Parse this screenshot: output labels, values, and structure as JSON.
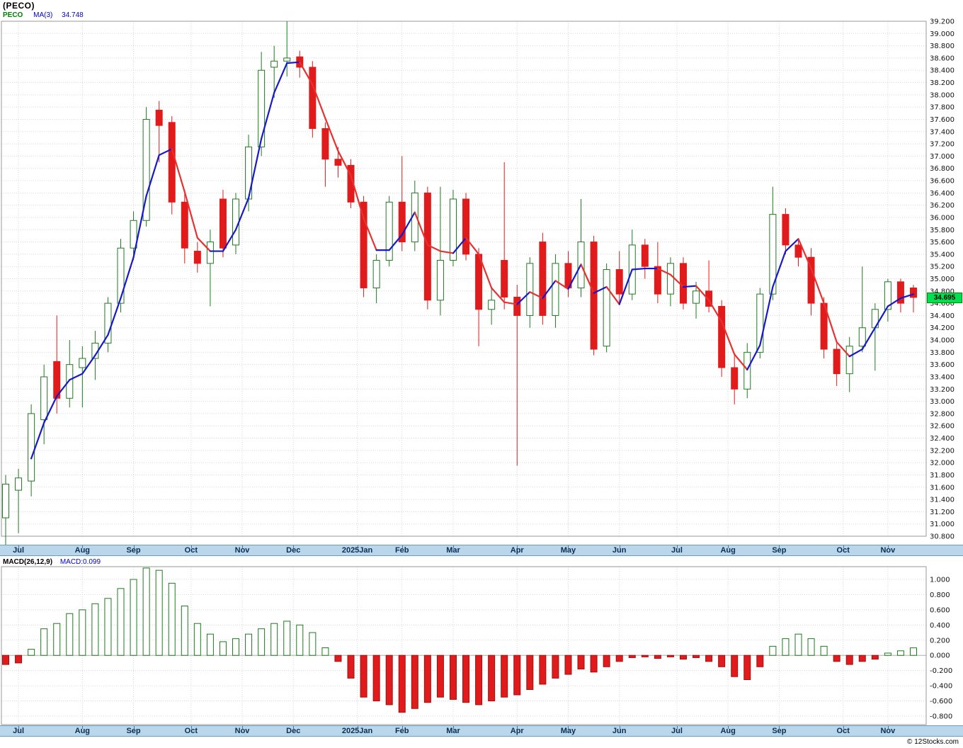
{
  "attribution": "© 12Stocks.com",
  "colors": {
    "up": "#1f7a1f",
    "down": "#e11b1b",
    "up_fill": "#ffffff",
    "ma_up": "#1818cc",
    "ma_down": "#e83030",
    "grid": "#d8d8d8",
    "border": "#999999",
    "axis_strip": "#b9d6ea",
    "tag_bg": "#00e050"
  },
  "chart_data": [
    {
      "type": "candlestick",
      "title": "(PECO)",
      "legend": {
        "symbol": "PECO",
        "ma_label": "MA(3)",
        "ma_value": "34.748"
      },
      "ylim": [
        30.8,
        39.2
      ],
      "ytick_step": 0.2,
      "ma_period": 3,
      "last_price": 34.695,
      "last_price_label": "34.695",
      "months": [
        {
          "label": "Jul",
          "week": 1
        },
        {
          "label": "Aug",
          "week": 6
        },
        {
          "label": "Sep",
          "week": 10
        },
        {
          "label": "Oct",
          "week": 14.5
        },
        {
          "label": "Nov",
          "week": 18.5
        },
        {
          "label": "Dec",
          "week": 22.5
        },
        {
          "label": "2025Jan",
          "week": 27.5
        },
        {
          "label": "Feb",
          "week": 31
        },
        {
          "label": "Mar",
          "week": 35
        },
        {
          "label": "Apr",
          "week": 40
        },
        {
          "label": "May",
          "week": 44
        },
        {
          "label": "Jun",
          "week": 48
        },
        {
          "label": "Jul",
          "week": 52.5
        },
        {
          "label": "Aug",
          "week": 56.5
        },
        {
          "label": "Sep",
          "week": 60.5
        },
        {
          "label": "Oct",
          "week": 65.5
        },
        {
          "label": "Nov",
          "week": 69
        }
      ],
      "open": [
        31.1,
        31.55,
        31.7,
        32.7,
        33.65,
        33.05,
        33.55,
        33.7,
        33.95,
        34.6,
        35.5,
        35.95,
        37.75,
        37.55,
        36.25,
        35.45,
        35.25,
        36.3,
        35.55,
        36.3,
        37.15,
        38.45,
        38.55,
        38.62,
        38.45,
        37.45,
        36.95,
        36.85,
        36.25,
        34.85,
        35.3,
        36.25,
        35.6,
        36.4,
        34.65,
        35.3,
        36.3,
        35.4,
        34.5,
        35.3,
        34.7,
        34.4,
        35.6,
        34.4,
        35.25,
        34.85,
        35.6,
        33.9,
        35.15,
        34.75,
        35.55,
        35.2,
        34.75,
        35.25,
        34.6,
        34.8,
        34.55,
        33.55,
        33.2,
        33.8,
        34.75,
        36.05,
        35.55,
        35.35,
        34.6,
        33.85,
        33.45,
        33.9,
        34.2,
        34.5,
        34.95,
        34.85
      ],
      "high": [
        31.8,
        31.9,
        32.95,
        33.6,
        34.4,
        34.0,
        33.9,
        34.15,
        34.7,
        35.65,
        36.1,
        37.8,
        37.9,
        37.65,
        36.45,
        35.6,
        35.8,
        36.45,
        36.4,
        37.35,
        38.7,
        38.8,
        39.2,
        38.72,
        38.55,
        37.55,
        37.15,
        36.95,
        36.35,
        35.4,
        36.35,
        37.0,
        36.6,
        36.5,
        36.5,
        36.45,
        36.4,
        35.5,
        34.85,
        36.9,
        34.9,
        35.35,
        35.75,
        35.4,
        35.45,
        36.3,
        35.7,
        35.25,
        35.45,
        35.8,
        35.65,
        35.6,
        35.35,
        35.35,
        34.95,
        35.3,
        34.65,
        33.75,
        33.95,
        34.85,
        36.5,
        36.15,
        35.65,
        35.5,
        34.7,
        33.95,
        34.05,
        35.2,
        34.6,
        35.0,
        35.0,
        34.9
      ],
      "low": [
        30.55,
        30.85,
        31.45,
        32.3,
        32.8,
        32.9,
        32.9,
        33.35,
        33.8,
        34.45,
        35.3,
        35.85,
        36.9,
        36.05,
        35.25,
        35.1,
        34.55,
        35.35,
        35.4,
        36.1,
        37.0,
        37.95,
        38.3,
        38.28,
        37.3,
        36.5,
        36.65,
        36.15,
        34.7,
        34.6,
        35.2,
        35.45,
        35.45,
        34.5,
        34.4,
        35.2,
        35.3,
        33.9,
        34.25,
        34.5,
        31.95,
        34.2,
        34.25,
        34.2,
        34.7,
        34.7,
        33.75,
        33.8,
        34.6,
        34.65,
        35.0,
        34.6,
        34.55,
        34.5,
        34.35,
        34.45,
        33.4,
        32.95,
        33.05,
        33.7,
        34.65,
        35.4,
        35.2,
        34.4,
        33.7,
        33.25,
        33.15,
        33.8,
        33.5,
        34.3,
        34.45,
        34.45
      ],
      "close": [
        31.65,
        31.75,
        32.8,
        33.4,
        33.05,
        33.6,
        33.7,
        33.95,
        34.6,
        35.5,
        35.95,
        37.6,
        37.5,
        36.25,
        35.5,
        35.25,
        35.6,
        35.5,
        36.3,
        37.15,
        38.4,
        38.55,
        38.6,
        38.45,
        37.45,
        36.95,
        36.85,
        36.25,
        34.85,
        35.3,
        36.25,
        35.6,
        36.4,
        34.65,
        35.3,
        36.3,
        35.4,
        34.5,
        34.65,
        34.7,
        34.4,
        35.25,
        34.4,
        35.25,
        34.85,
        35.6,
        33.85,
        35.15,
        34.75,
        35.55,
        35.2,
        34.75,
        35.25,
        34.6,
        34.8,
        34.55,
        33.55,
        33.2,
        33.8,
        34.75,
        36.05,
        35.55,
        35.35,
        34.6,
        33.85,
        33.45,
        33.9,
        34.2,
        34.5,
        34.95,
        34.6,
        34.695
      ]
    },
    {
      "type": "bar",
      "label": "MACD(26,12,9)",
      "value_label": "MACD:0.099",
      "last_value": 0.099,
      "ytick_top": 1.0,
      "ytick_step": 0.2,
      "ytick_count": 10,
      "ylim": [
        -0.92,
        1.16
      ],
      "values": [
        -0.12,
        -0.1,
        0.08,
        0.35,
        0.42,
        0.55,
        0.6,
        0.68,
        0.75,
        0.88,
        1.0,
        1.15,
        1.12,
        0.95,
        0.65,
        0.42,
        0.28,
        0.18,
        0.22,
        0.28,
        0.35,
        0.42,
        0.45,
        0.4,
        0.3,
        0.1,
        -0.08,
        -0.3,
        -0.55,
        -0.6,
        -0.65,
        -0.75,
        -0.7,
        -0.62,
        -0.55,
        -0.58,
        -0.62,
        -0.65,
        -0.6,
        -0.55,
        -0.52,
        -0.45,
        -0.38,
        -0.3,
        -0.25,
        -0.18,
        -0.22,
        -0.15,
        -0.08,
        -0.03,
        -0.02,
        -0.04,
        -0.02,
        -0.05,
        -0.03,
        -0.08,
        -0.15,
        -0.28,
        -0.32,
        -0.15,
        0.12,
        0.22,
        0.28,
        0.22,
        0.12,
        -0.08,
        -0.12,
        -0.08,
        -0.05,
        0.03,
        0.06,
        0.099
      ]
    }
  ]
}
